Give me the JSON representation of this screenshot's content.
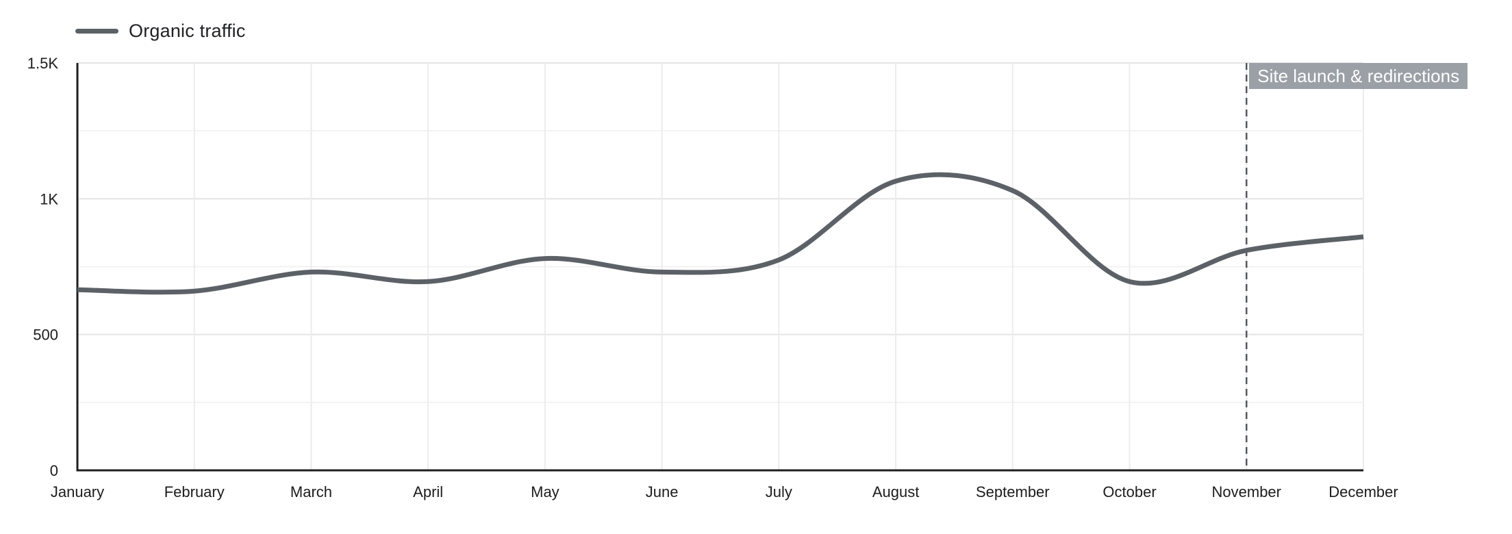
{
  "chart_data": {
    "type": "line",
    "legend": {
      "label": "Organic traffic",
      "position": "top-left"
    },
    "categories": [
      "January",
      "February",
      "March",
      "April",
      "May",
      "June",
      "July",
      "August",
      "September",
      "October",
      "November",
      "December"
    ],
    "series": [
      {
        "name": "Organic traffic",
        "color": "#5c6167",
        "values": [
          665,
          660,
          730,
          695,
          780,
          730,
          775,
          1065,
          1030,
          695,
          810,
          860
        ]
      }
    ],
    "y_axis": {
      "min": 0,
      "max": 1500,
      "ticks": [
        {
          "value": 1500,
          "label": "1.5K"
        },
        {
          "value": 1000,
          "label": "1K"
        },
        {
          "value": 500,
          "label": "500"
        },
        {
          "value": 0,
          "label": "0"
        }
      ],
      "minor_gridline_values": [
        250,
        750,
        1250
      ]
    },
    "annotation": {
      "label": "Site launch & redirections",
      "category": "November",
      "category_index": 10,
      "line_style": "dashed",
      "line_color": "#54575d",
      "bg_color": "#9aa0a6",
      "text_color": "#ffffff"
    },
    "style": {
      "axis_color": "#1e1e1e",
      "major_grid_color": "#e4e4e4",
      "minor_grid_color": "#f2f2f2",
      "vertical_grid_color": "#ececec",
      "label_color": "#1c1c1c"
    },
    "grid": {
      "horizontal": true,
      "vertical": true
    },
    "curve": "smooth"
  }
}
